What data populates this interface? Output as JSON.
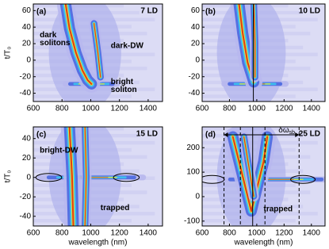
{
  "chart_data": [
    {
      "type": "heatmap",
      "panel_label": "(a)",
      "annotation": "7 LD",
      "xlim": [
        600,
        1500
      ],
      "xticks": [
        600,
        800,
        1000,
        1200,
        1400
      ],
      "ylim": [
        -50,
        68
      ],
      "yticks": [
        -40,
        -20,
        0,
        20,
        40,
        60
      ],
      "ylabel": "t/T₀",
      "notes": [
        {
          "lines": [
            "dark",
            "solitons"
          ]
        },
        {
          "lines": [
            "dark-DW"
          ]
        },
        {
          "lines": [
            "bright",
            "soliton"
          ]
        }
      ]
    },
    {
      "type": "heatmap",
      "panel_label": "(b)",
      "annotation": "10 LD",
      "xlim": [
        600,
        1500
      ],
      "xticks": [
        600,
        800,
        1000,
        1200,
        1400
      ],
      "ylim": [
        -50,
        68
      ],
      "yticks": [
        -40,
        -20,
        0,
        20,
        40,
        60
      ],
      "vline": 975
    },
    {
      "type": "heatmap",
      "panel_label": "(c)",
      "annotation": "15 LD",
      "xlim": [
        600,
        1500
      ],
      "xticks": [
        600,
        800,
        1000,
        1200,
        1400
      ],
      "ylim": [
        -50,
        52
      ],
      "yticks": [
        -40,
        -20,
        0,
        20,
        40
      ],
      "ylabel": "t/T₀",
      "xlabel": "wavelength (nm)",
      "notes": [
        {
          "lines": [
            "bright-DW"
          ]
        },
        {
          "lines": [
            "trapped"
          ]
        }
      ]
    },
    {
      "type": "heatmap",
      "panel_label": "(d)",
      "annotation": "25 LD",
      "xlim": [
        600,
        1500
      ],
      "xticks": [
        600,
        800,
        1000,
        1200,
        1400
      ],
      "ylim": [
        -120,
        285
      ],
      "yticks": [
        -100,
        0,
        100,
        200
      ],
      "xlabel": "wavelength (nm)",
      "vline": 970,
      "dashed_lines": [
        760,
        880,
        1060,
        1310
      ],
      "span_label": "δω",
      "span_label_sub": "sb",
      "notes": [
        {
          "lines": [
            "trapped"
          ]
        }
      ]
    }
  ]
}
